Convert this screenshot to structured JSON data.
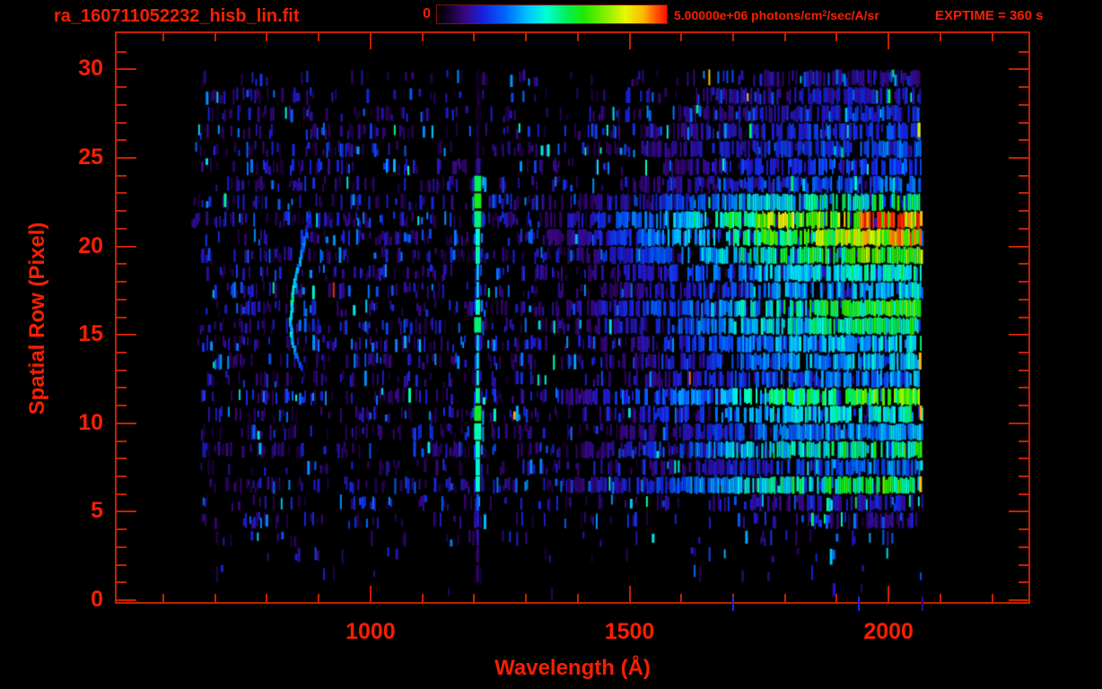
{
  "header": {
    "title": "ra_160711052232_hisb_lin.fit",
    "colorbar_min_label": "0",
    "colorbar_max_label": {
      "prefix": "5.00000e+06 photons/cm",
      "sup": "2",
      "suffix": "/sec/A/sr"
    },
    "exptime_label": "EXPTIME = 360 s"
  },
  "colors": {
    "background": "#000000",
    "text": "#f52000",
    "frame": "#c62100",
    "colorbar_border": "#7e130b"
  },
  "axes": {
    "y_tick_labels": [
      "0",
      "5",
      "10",
      "15",
      "20",
      "25",
      "30"
    ],
    "x_tick_labels": [
      "1000",
      "1500",
      "2000"
    ]
  },
  "chart_data": {
    "type": "heatmap",
    "title": "ra_160711052232_hisb_lin.fit",
    "xlabel": "Wavelength (Å)",
    "ylabel": "Spatial Row (Pixel)",
    "xlim": [
      510,
      2270
    ],
    "ylim": [
      -0.1,
      32.05
    ],
    "x_major_ticks": [
      1000,
      1500,
      2000
    ],
    "x_minor_tick_start": 600,
    "x_minor_tick_step": 100,
    "x_minor_tick_end": 2200,
    "y_major_ticks": [
      0,
      5,
      10,
      15,
      20,
      25,
      30
    ],
    "y_minor_tick_step": 1,
    "colorbar": {
      "min": 0,
      "max": 5000000,
      "units": "photons/cm^2/sec/A/sr"
    },
    "exposure_seconds": 360,
    "seed": 20160711,
    "data_wavelength_range": [
      652,
      2066
    ],
    "colormap_stops": [
      [
        0.0,
        "#000000"
      ],
      [
        0.05,
        "#14002b"
      ],
      [
        0.12,
        "#38077e"
      ],
      [
        0.2,
        "#1820e0"
      ],
      [
        0.3,
        "#0068ff"
      ],
      [
        0.4,
        "#00c8ff"
      ],
      [
        0.48,
        "#00ffd0"
      ],
      [
        0.56,
        "#00f060"
      ],
      [
        0.64,
        "#20e800"
      ],
      [
        0.74,
        "#8cf000"
      ],
      [
        0.82,
        "#e8f800"
      ],
      [
        0.9,
        "#ffb400"
      ],
      [
        0.95,
        "#ff5a00"
      ],
      [
        1.0,
        "#ff0f00"
      ]
    ],
    "continuum_profile": [
      [
        1230,
        0
      ],
      [
        1320,
        0.1
      ],
      [
        1500,
        0.3
      ],
      [
        1650,
        0.55
      ],
      [
        1800,
        0.8
      ],
      [
        1950,
        0.92
      ],
      [
        2060,
        1.0
      ]
    ],
    "row_continuum_strength": [
      0,
      0.02,
      0.03,
      0.05,
      0.1,
      0.12,
      0.18,
      0.6,
      0.3,
      0.58,
      0.38,
      0.5,
      0.66,
      0.35,
      0.42,
      0.45,
      0.55,
      0.62,
      0.42,
      0.5,
      0.68,
      0.8,
      0.88,
      0.55,
      0.3,
      0.26,
      0.28,
      0.26,
      0.22,
      0.2,
      0.14
    ],
    "row_noise_factor": [
      0.02,
      0.06,
      0.1,
      0.25,
      0.5,
      0.7,
      0.9,
      1,
      1,
      1,
      1,
      1,
      1,
      1,
      1,
      1,
      1,
      1,
      1,
      1,
      1,
      1,
      1,
      1,
      1,
      1,
      1,
      1,
      0.9,
      0.8,
      0.6
    ],
    "emission_line": {
      "name": "Lyman-alpha",
      "wavelength": 1207,
      "row_intensity": [
        0,
        0,
        0.1,
        0.12,
        0.16,
        0.2,
        0.3,
        0.5,
        0.45,
        0.5,
        0.55,
        0.6,
        0.5,
        0.42,
        0.4,
        0.42,
        0.55,
        0.52,
        0.4,
        0.42,
        0.48,
        0.5,
        0.55,
        0.62,
        0.6,
        0.12,
        0.08,
        0.06,
        0.05,
        0.05,
        0.04
      ]
    },
    "arc_feature": {
      "name": "curved-airglow-arc",
      "points": [
        {
          "row": 22.0,
          "wavelength": 882,
          "t": 0.2
        },
        {
          "row": 21.0,
          "wavelength": 876,
          "t": 0.25
        },
        {
          "row": 20.0,
          "wavelength": 868,
          "t": 0.3
        },
        {
          "row": 19.0,
          "wavelength": 860,
          "t": 0.32
        },
        {
          "row": 18.0,
          "wavelength": 853,
          "t": 0.4
        },
        {
          "row": 17.0,
          "wavelength": 848,
          "t": 0.48
        },
        {
          "row": 16.0,
          "wavelength": 845,
          "t": 0.45
        },
        {
          "row": 15.0,
          "wavelength": 848,
          "t": 0.4
        },
        {
          "row": 14.0,
          "wavelength": 856,
          "t": 0.3
        },
        {
          "row": 13.3,
          "wavelength": 866,
          "t": 0.2
        }
      ]
    },
    "edge_spikes": [
      {
        "row": 7,
        "t": 0.95
      },
      {
        "row": 11,
        "t": 0.95
      },
      {
        "row": 14,
        "t": 0.9
      },
      {
        "row": 21,
        "t": 1.0
      },
      {
        "row": 22,
        "t": 0.95
      },
      {
        "row": 27,
        "t": 0.85
      }
    ],
    "bottom_artifacts_wavelengths": [
      1700,
      1943,
      2066
    ]
  }
}
